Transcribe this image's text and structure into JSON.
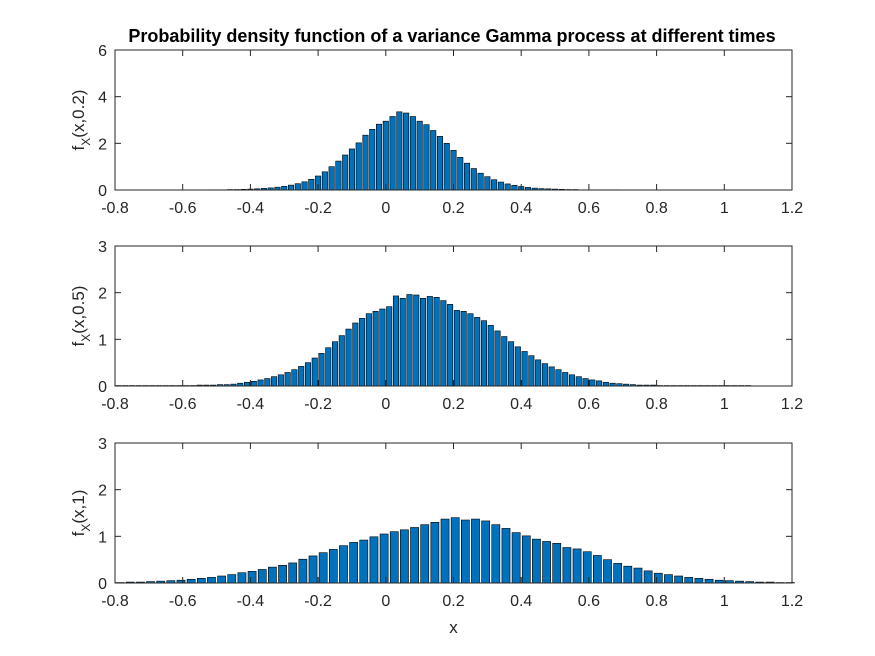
{
  "chart_data": [
    {
      "type": "bar",
      "title": "Probability density function of a variance Gamma process at different times",
      "ylabel": {
        "base": "f",
        "sub": "X",
        "args": "(x,0.2)"
      },
      "xlabel": "",
      "xlim": [
        -0.8,
        1.2
      ],
      "ylim": [
        0,
        6
      ],
      "xticks": [
        "-0.8",
        "-0.6",
        "-0.4",
        "-0.2",
        "0",
        "0.2",
        "0.4",
        "0.6",
        "0.8",
        "1",
        "1.2"
      ],
      "yticks": [
        "0",
        "2",
        "4",
        "6"
      ],
      "bar_color": "#0072BD",
      "grid": false,
      "x": [
        -0.52,
        -0.5,
        -0.48,
        -0.46,
        -0.44,
        -0.42,
        -0.4,
        -0.38,
        -0.36,
        -0.34,
        -0.32,
        -0.3,
        -0.28,
        -0.26,
        -0.24,
        -0.22,
        -0.2,
        -0.18,
        -0.16,
        -0.14,
        -0.12,
        -0.1,
        -0.08,
        -0.06,
        -0.04,
        -0.02,
        0.0,
        0.02,
        0.04,
        0.06,
        0.08,
        0.1,
        0.12,
        0.14,
        0.16,
        0.18,
        0.2,
        0.22,
        0.24,
        0.26,
        0.28,
        0.3,
        0.32,
        0.34,
        0.36,
        0.38,
        0.4,
        0.42,
        0.44,
        0.46,
        0.48,
        0.5,
        0.52,
        0.54,
        0.56,
        0.58,
        0.6,
        0.62,
        0.64,
        0.66,
        0.68
      ],
      "values": [
        0.01,
        0.01,
        0.01,
        0.02,
        0.02,
        0.03,
        0.04,
        0.05,
        0.07,
        0.09,
        0.12,
        0.16,
        0.21,
        0.27,
        0.35,
        0.46,
        0.6,
        0.78,
        1.0,
        1.24,
        1.5,
        1.76,
        2.02,
        2.35,
        2.6,
        2.82,
        2.95,
        3.15,
        3.35,
        3.3,
        3.15,
        2.95,
        2.8,
        2.55,
        2.3,
        2.0,
        1.7,
        1.4,
        1.15,
        0.92,
        0.72,
        0.57,
        0.44,
        0.34,
        0.26,
        0.2,
        0.15,
        0.11,
        0.08,
        0.06,
        0.05,
        0.04,
        0.03,
        0.02,
        0.02,
        0.01,
        0.01,
        0.01,
        0.01,
        0.01,
        0.01
      ]
    },
    {
      "type": "bar",
      "title": "",
      "ylabel": {
        "base": "f",
        "sub": "X",
        "args": "(x,0.5)"
      },
      "xlabel": "",
      "xlim": [
        -0.8,
        1.2
      ],
      "ylim": [
        0,
        3
      ],
      "xticks": [
        "-0.8",
        "-0.6",
        "-0.4",
        "-0.2",
        "0",
        "0.2",
        "0.4",
        "0.6",
        "0.8",
        "1",
        "1.2"
      ],
      "yticks": [
        "0",
        "1",
        "2",
        "3"
      ],
      "bar_color": "#0072BD",
      "grid": false,
      "x": [
        -0.79,
        -0.77,
        -0.75,
        -0.73,
        -0.71,
        -0.69,
        -0.67,
        -0.65,
        -0.63,
        -0.61,
        -0.59,
        -0.57,
        -0.55,
        -0.53,
        -0.51,
        -0.49,
        -0.47,
        -0.45,
        -0.43,
        -0.41,
        -0.39,
        -0.37,
        -0.35,
        -0.33,
        -0.31,
        -0.29,
        -0.27,
        -0.25,
        -0.23,
        -0.21,
        -0.19,
        -0.17,
        -0.15,
        -0.13,
        -0.11,
        -0.09,
        -0.07,
        -0.05,
        -0.03,
        -0.01,
        0.01,
        0.03,
        0.05,
        0.07,
        0.09,
        0.11,
        0.13,
        0.15,
        0.17,
        0.19,
        0.21,
        0.23,
        0.25,
        0.27,
        0.29,
        0.31,
        0.33,
        0.35,
        0.37,
        0.39,
        0.41,
        0.43,
        0.45,
        0.47,
        0.49,
        0.51,
        0.53,
        0.55,
        0.57,
        0.59,
        0.61,
        0.63,
        0.65,
        0.67,
        0.69,
        0.71,
        0.73,
        0.75,
        0.77,
        0.79,
        0.81,
        0.83,
        0.85,
        0.87,
        0.89,
        0.91,
        0.93,
        0.95,
        0.97,
        0.99,
        1.01,
        1.03,
        1.05,
        1.07
      ],
      "values": [
        0.01,
        0.01,
        0.01,
        0.01,
        0.01,
        0.01,
        0.01,
        0.01,
        0.01,
        0.01,
        0.01,
        0.01,
        0.02,
        0.02,
        0.02,
        0.03,
        0.03,
        0.04,
        0.06,
        0.08,
        0.1,
        0.13,
        0.16,
        0.2,
        0.24,
        0.29,
        0.35,
        0.42,
        0.5,
        0.6,
        0.7,
        0.82,
        0.95,
        1.08,
        1.22,
        1.35,
        1.45,
        1.55,
        1.6,
        1.65,
        1.7,
        1.93,
        1.88,
        1.96,
        1.95,
        1.88,
        1.92,
        1.9,
        1.83,
        1.75,
        1.62,
        1.6,
        1.55,
        1.47,
        1.4,
        1.3,
        1.18,
        1.06,
        0.95,
        0.84,
        0.74,
        0.65,
        0.56,
        0.48,
        0.41,
        0.35,
        0.29,
        0.24,
        0.2,
        0.16,
        0.13,
        0.11,
        0.08,
        0.06,
        0.05,
        0.04,
        0.03,
        0.02,
        0.02,
        0.02,
        0.01,
        0.01,
        0.01,
        0.01,
        0.01,
        0.01,
        0.01,
        0.01,
        0.01,
        0.01,
        0.01,
        0.01,
        0.01,
        0.01
      ]
    },
    {
      "type": "bar",
      "title": "",
      "ylabel": {
        "base": "f",
        "sub": "X",
        "args": "(x,1)"
      },
      "xlabel": "x",
      "xlim": [
        -0.8,
        1.2
      ],
      "ylim": [
        0,
        3
      ],
      "xticks": [
        "-0.8",
        "-0.6",
        "-0.4",
        "-0.2",
        "0",
        "0.2",
        "0.4",
        "0.6",
        "0.8",
        "1",
        "1.2"
      ],
      "yticks": [
        "0",
        "1",
        "2",
        "3"
      ],
      "bar_color": "#0072BD",
      "grid": false,
      "x": [
        -0.785,
        -0.755,
        -0.725,
        -0.695,
        -0.665,
        -0.635,
        -0.605,
        -0.575,
        -0.545,
        -0.515,
        -0.485,
        -0.455,
        -0.425,
        -0.395,
        -0.365,
        -0.335,
        -0.305,
        -0.275,
        -0.245,
        -0.215,
        -0.185,
        -0.155,
        -0.125,
        -0.095,
        -0.065,
        -0.035,
        -0.005,
        0.025,
        0.055,
        0.085,
        0.115,
        0.145,
        0.175,
        0.205,
        0.235,
        0.265,
        0.295,
        0.325,
        0.355,
        0.385,
        0.415,
        0.445,
        0.475,
        0.505,
        0.535,
        0.565,
        0.595,
        0.625,
        0.655,
        0.685,
        0.715,
        0.745,
        0.775,
        0.805,
        0.835,
        0.865,
        0.895,
        0.925,
        0.955,
        0.985,
        1.015,
        1.045,
        1.075,
        1.105,
        1.135,
        1.165,
        1.195
      ],
      "values": [
        0.01,
        0.02,
        0.02,
        0.03,
        0.04,
        0.05,
        0.06,
        0.08,
        0.1,
        0.12,
        0.15,
        0.18,
        0.22,
        0.25,
        0.29,
        0.34,
        0.38,
        0.43,
        0.51,
        0.58,
        0.65,
        0.72,
        0.8,
        0.87,
        0.92,
        0.99,
        1.05,
        1.1,
        1.14,
        1.19,
        1.25,
        1.3,
        1.37,
        1.4,
        1.35,
        1.37,
        1.33,
        1.25,
        1.17,
        1.08,
        1.01,
        0.94,
        0.89,
        0.85,
        0.76,
        0.73,
        0.67,
        0.59,
        0.5,
        0.42,
        0.36,
        0.32,
        0.26,
        0.21,
        0.18,
        0.15,
        0.12,
        0.1,
        0.08,
        0.06,
        0.05,
        0.04,
        0.03,
        0.02,
        0.02,
        0.01,
        0.01
      ]
    }
  ]
}
